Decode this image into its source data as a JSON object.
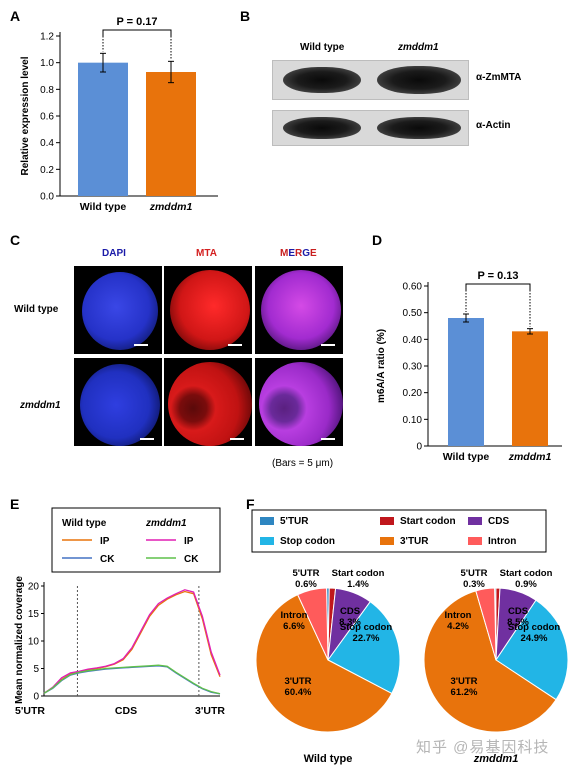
{
  "panels": {
    "A": "A",
    "B": "B",
    "C": "C",
    "D": "D",
    "E": "E",
    "F": "F"
  },
  "panelA": {
    "ylabel": "Relative expression level",
    "sig": "P = 0.17",
    "chart_data": {
      "type": "bar",
      "categories": [
        "Wild type",
        "zmddm1"
      ],
      "values": [
        1.0,
        0.93
      ],
      "errors": [
        0.07,
        0.08
      ],
      "colors": [
        "#5b8fd6",
        "#e8730c"
      ],
      "ylim": [
        0,
        1.2
      ],
      "yticks": [
        "0.0",
        "0.2",
        "0.4",
        "0.6",
        "0.8",
        "1.0",
        "1.2"
      ]
    }
  },
  "panelB": {
    "col1": "Wild type",
    "col2": "zmddm1",
    "row1": "α-ZmMTA",
    "row2": "α-Actin"
  },
  "panelC": {
    "headers": [
      "DAPI",
      "MTA",
      "MERGE"
    ],
    "merge_letters": [
      "M",
      "E",
      "R",
      "G",
      "E"
    ],
    "merge_colors": [
      "#c81e1e",
      "#1a1aa8",
      "#c81e1e",
      "#1a1aa8",
      "#c81e1e"
    ],
    "header_colors": [
      "#1a1aa8",
      "#d42020"
    ],
    "rows": [
      "Wild type",
      "zmddm1"
    ],
    "bars_note": "(Bars = 5 μm)"
  },
  "panelD": {
    "ylabel": "m6A/A ratio (%)",
    "sig": "P = 0.13",
    "chart_data": {
      "type": "bar",
      "categories": [
        "Wild type",
        "zmddm1"
      ],
      "values": [
        0.48,
        0.43
      ],
      "errors": [
        0.015,
        0.01
      ],
      "colors": [
        "#5b8fd6",
        "#e8730c"
      ],
      "ylim": [
        0,
        0.6
      ],
      "yticks": [
        "0",
        "0.10",
        "0.20",
        "0.30",
        "0.40",
        "0.50",
        "0.60"
      ]
    }
  },
  "panelE": {
    "ylabel": "Mean normalized coverage",
    "legend": {
      "group1": "Wild type",
      "group2": "zmddm1",
      "ip": "IP",
      "ck": "CK"
    },
    "xlabels": [
      "5'UTR",
      "CDS",
      "3'UTR"
    ],
    "chart_data": {
      "type": "line",
      "ylim": [
        0,
        20
      ],
      "yticks": [
        "0",
        "5",
        "10",
        "15",
        "20"
      ],
      "x": [
        0,
        5,
        10,
        15,
        20,
        25,
        30,
        35,
        40,
        45,
        50,
        55,
        60,
        65,
        70,
        75,
        80,
        85,
        90,
        95,
        100
      ],
      "series": [
        {
          "name": "Wild type IP",
          "color": "#e8730c",
          "values": [
            0.5,
            1.5,
            3.0,
            4.0,
            4.4,
            4.8,
            5.0,
            5.3,
            5.8,
            6.6,
            8.5,
            11.5,
            14.5,
            16.5,
            17.6,
            18.4,
            19.0,
            18.6,
            14.0,
            7.5,
            3.5
          ]
        },
        {
          "name": "zmddm1 IP",
          "color": "#e11fb4",
          "values": [
            0.5,
            1.6,
            3.3,
            4.2,
            4.5,
            4.9,
            5.1,
            5.4,
            5.9,
            6.8,
            8.8,
            11.8,
            14.8,
            16.8,
            17.8,
            18.6,
            19.3,
            18.9,
            14.5,
            8.0,
            3.8
          ]
        },
        {
          "name": "Wild type CK",
          "color": "#4472c4",
          "values": [
            0.5,
            1.4,
            2.8,
            3.8,
            4.2,
            4.5,
            4.7,
            4.9,
            5.0,
            5.1,
            5.2,
            5.3,
            5.4,
            5.5,
            5.3,
            4.2,
            3.2,
            2.2,
            1.3,
            0.7,
            0.4
          ]
        },
        {
          "name": "zmddm1 CK",
          "color": "#5fc04a",
          "values": [
            0.5,
            1.5,
            2.9,
            3.9,
            4.3,
            4.6,
            4.8,
            5.0,
            5.1,
            5.2,
            5.3,
            5.4,
            5.5,
            5.6,
            5.4,
            4.3,
            3.3,
            2.3,
            1.4,
            0.8,
            0.4
          ]
        }
      ]
    }
  },
  "panelF": {
    "legend": [
      {
        "label": "5'TUR",
        "color": "#2e86c1"
      },
      {
        "label": "Start codon",
        "color": "#c0171c"
      },
      {
        "label": "CDS",
        "color": "#7030a0"
      },
      {
        "label": "Stop codon",
        "color": "#22b5e6"
      },
      {
        "label": "3'TUR",
        "color": "#e8730c"
      },
      {
        "label": "Intron",
        "color": "#ff5b5b"
      }
    ],
    "chart_data": [
      {
        "type": "pie",
        "title": "Wild type",
        "labels": [
          "5'UTR",
          "Start codon",
          "CDS",
          "Stop codon",
          "3'UTR",
          "Intron"
        ],
        "values": [
          0.6,
          1.4,
          8.3,
          22.7,
          60.4,
          6.6
        ],
        "value_labels": [
          "0.6%",
          "1.4%",
          "8.3%",
          "22.7%",
          "60.4%",
          "6.6%"
        ],
        "colors": [
          "#2e86c1",
          "#c0171c",
          "#7030a0",
          "#22b5e6",
          "#e8730c",
          "#ff5b5b"
        ]
      },
      {
        "type": "pie",
        "title": "zmddm1",
        "labels": [
          "5'UTR",
          "Start codon",
          "CDS",
          "Stop codon",
          "3'UTR",
          "Intron"
        ],
        "values": [
          0.3,
          0.9,
          8.5,
          24.9,
          61.2,
          4.2
        ],
        "value_labels": [
          "0.3%",
          "0.9%",
          "8.5%",
          "24.9%",
          "61.2%",
          "4.2%"
        ],
        "colors": [
          "#2e86c1",
          "#c0171c",
          "#7030a0",
          "#22b5e6",
          "#e8730c",
          "#ff5b5b"
        ]
      }
    ]
  },
  "watermark": "知乎 @易基因科技"
}
